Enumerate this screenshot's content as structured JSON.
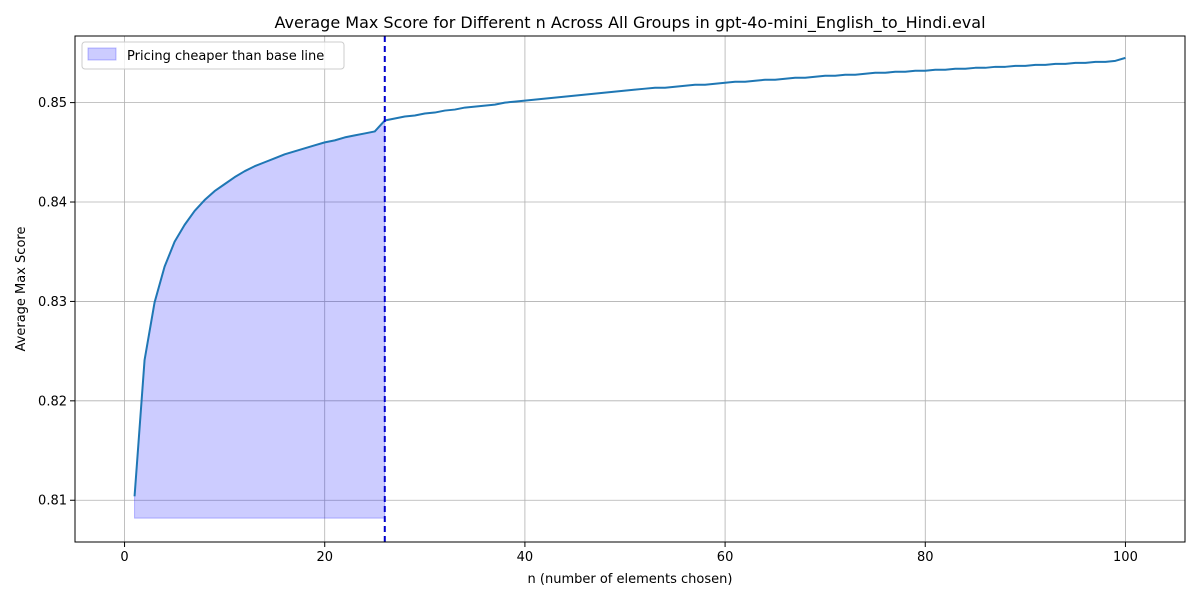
{
  "chart_data": {
    "type": "line",
    "title": "Average Max Score for Different n Across All Groups in gpt-4o-mini_English_to_Hindi.eval",
    "xlabel": "n (number of elements chosen)",
    "ylabel": "Average Max Score",
    "xlim": [
      -4.95,
      105.95
    ],
    "ylim": [
      0.8058,
      0.8567
    ],
    "xticks": [
      0,
      20,
      40,
      60,
      80,
      100
    ],
    "xtick_labels": [
      "0",
      "20",
      "40",
      "60",
      "80",
      "100"
    ],
    "yticks": [
      0.81,
      0.82,
      0.83,
      0.84,
      0.85
    ],
    "ytick_labels": [
      "0.81",
      "0.82",
      "0.83",
      "0.84",
      "0.85"
    ],
    "grid": true,
    "series": [
      {
        "name": "",
        "color": "#1f77b4",
        "x": [
          1,
          2,
          3,
          4,
          5,
          6,
          7,
          8,
          9,
          10,
          11,
          12,
          13,
          14,
          15,
          16,
          17,
          18,
          19,
          20,
          21,
          22,
          23,
          24,
          25,
          26,
          27,
          28,
          29,
          30,
          31,
          32,
          33,
          34,
          35,
          36,
          37,
          38,
          39,
          40,
          41,
          42,
          43,
          44,
          45,
          46,
          47,
          48,
          49,
          50,
          51,
          52,
          53,
          54,
          55,
          56,
          57,
          58,
          59,
          60,
          61,
          62,
          63,
          64,
          65,
          66,
          67,
          68,
          69,
          70,
          71,
          72,
          73,
          74,
          75,
          76,
          77,
          78,
          79,
          80,
          81,
          82,
          83,
          84,
          85,
          86,
          87,
          88,
          89,
          90,
          91,
          92,
          93,
          94,
          95,
          96,
          97,
          98,
          99,
          100
        ],
        "y": [
          0.8104,
          0.8241,
          0.8299,
          0.8335,
          0.836,
          0.8377,
          0.8391,
          0.8402,
          0.8411,
          0.8418,
          0.8425,
          0.8431,
          0.8436,
          0.844,
          0.8444,
          0.8448,
          0.8451,
          0.8454,
          0.8457,
          0.846,
          0.8462,
          0.8465,
          0.8467,
          0.8469,
          0.8471,
          0.8482,
          0.8484,
          0.8486,
          0.8487,
          0.8489,
          0.849,
          0.8492,
          0.8493,
          0.8495,
          0.8496,
          0.8497,
          0.8498,
          0.85,
          0.8501,
          0.8502,
          0.8503,
          0.8504,
          0.8505,
          0.8506,
          0.8507,
          0.8508,
          0.8509,
          0.851,
          0.8511,
          0.8512,
          0.8513,
          0.8514,
          0.8515,
          0.8515,
          0.8516,
          0.8517,
          0.8518,
          0.8518,
          0.8519,
          0.852,
          0.8521,
          0.8521,
          0.8522,
          0.8523,
          0.8523,
          0.8524,
          0.8525,
          0.8525,
          0.8526,
          0.8527,
          0.8527,
          0.8528,
          0.8528,
          0.8529,
          0.853,
          0.853,
          0.8531,
          0.8531,
          0.8532,
          0.8532,
          0.8533,
          0.8533,
          0.8534,
          0.8534,
          0.8535,
          0.8535,
          0.8536,
          0.8536,
          0.8537,
          0.8537,
          0.8538,
          0.8538,
          0.8539,
          0.8539,
          0.854,
          0.854,
          0.8541,
          0.8541,
          0.8542,
          0.8545
        ]
      }
    ],
    "shaded_region": {
      "label": "Pricing cheaper than base line",
      "color": "#0000ff",
      "opacity": 0.2,
      "x_start": 1,
      "x_end": 26,
      "y_bottom": 0.8082
    },
    "vertical_line": {
      "x": 26,
      "color": "#0000cd",
      "style": "dashed"
    },
    "legend": {
      "position": "top-left",
      "entries": [
        "Pricing cheaper than base line"
      ]
    }
  }
}
